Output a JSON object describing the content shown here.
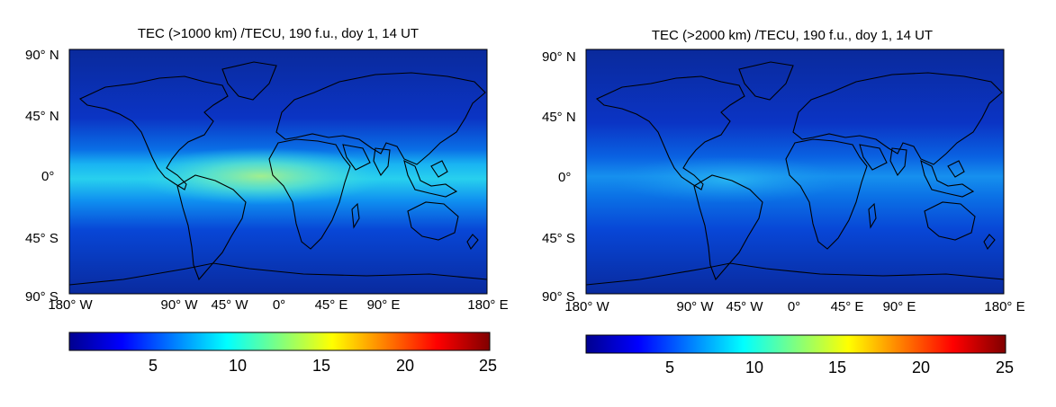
{
  "colorscale": [
    "#00008f",
    "#0000ff",
    "#00ffff",
    "#ffff00",
    "#ff0000",
    "#800000"
  ],
  "chart_data": [
    {
      "type": "heatmap",
      "title": "TEC (>1000 km) /TECU, 190 f.u., doy 1, 14 UT",
      "quantity": "TEC",
      "height_threshold_km": 1000,
      "flux_fu": 190,
      "doy": 1,
      "ut_hour": 14,
      "xlim": [
        -180,
        180
      ],
      "ylim": [
        -90,
        90
      ],
      "xticklabels": [
        "180° W",
        "90° W",
        "45° W",
        "0°",
        "45° E",
        "90° E",
        "180° E"
      ],
      "yticklabels": [
        "90° N",
        "45° N",
        "0°",
        "45° S",
        "90° S"
      ],
      "peak_value": 14,
      "background_value": 2,
      "peak_lon": -10,
      "colorbar": {
        "range": [
          0,
          25
        ],
        "ticks": [
          5,
          10,
          15,
          20,
          25
        ]
      }
    },
    {
      "type": "heatmap",
      "title": "TEC (>2000 km) /TECU, 190 f.u., doy 1, 14 UT",
      "quantity": "TEC",
      "height_threshold_km": 2000,
      "flux_fu": 190,
      "doy": 1,
      "ut_hour": 14,
      "xlim": [
        -180,
        180
      ],
      "ylim": [
        -90,
        90
      ],
      "xticklabels": [
        "180° W",
        "90° W",
        "45° W",
        "0°",
        "45° E",
        "90° E",
        "180° E"
      ],
      "yticklabels": [
        "90° N",
        "45° N",
        "0°",
        "45° S",
        "90° S"
      ],
      "peak_value": 8,
      "background_value": 1.5,
      "peak_lon": -30,
      "colorbar": {
        "range": [
          0,
          25
        ],
        "ticks": [
          5,
          10,
          15,
          20,
          25
        ]
      }
    }
  ]
}
